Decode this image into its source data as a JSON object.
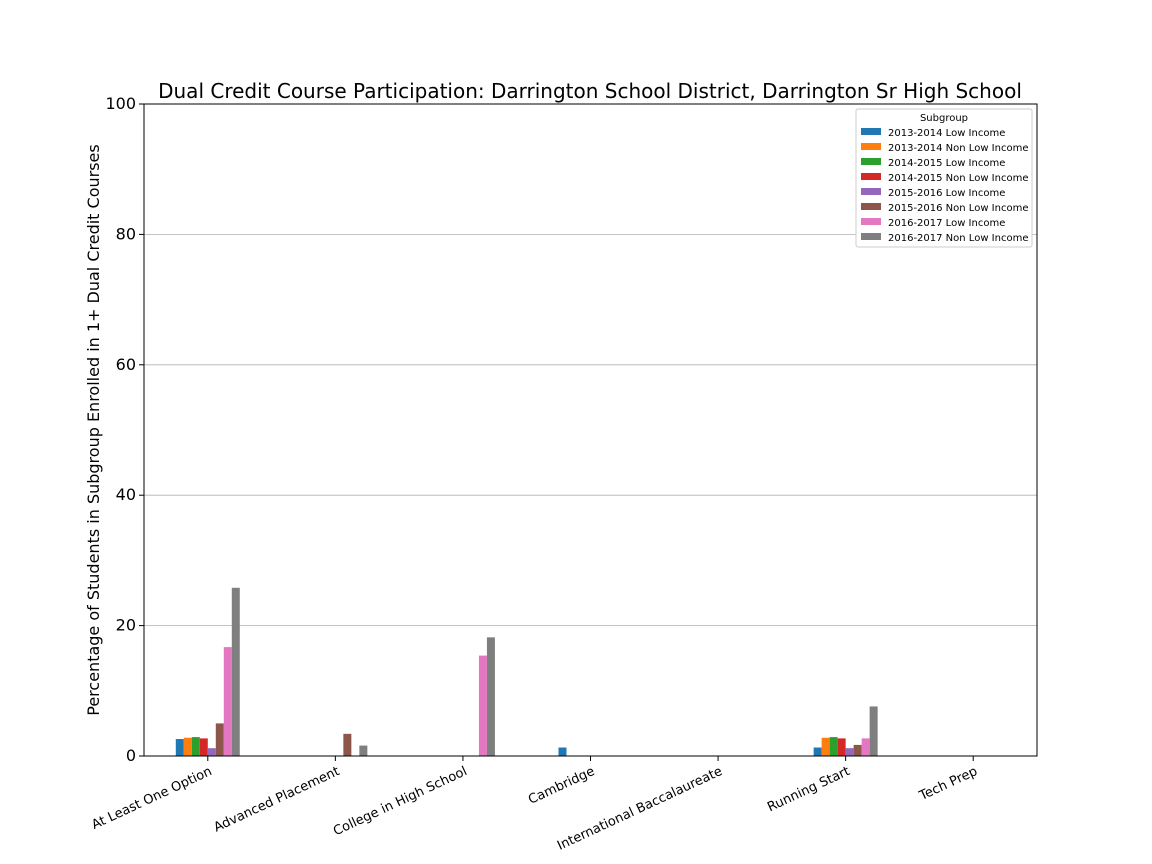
{
  "chart_data": {
    "type": "bar",
    "title": "Dual Credit Course Participation: Darrington School District, Darrington Sr High School",
    "xlabel": "",
    "ylabel": "Percentage of Students in Subgroup Enrolled in 1+ Dual Credit Courses",
    "ylim": [
      0,
      100
    ],
    "yticks": [
      0,
      20,
      40,
      60,
      80,
      100
    ],
    "grid": true,
    "legend": {
      "title": "Subgroup",
      "placement": "top-right"
    },
    "categories": [
      "At Least One Option",
      "Advanced Placement",
      "College in High School",
      "Cambridge",
      "International Baccalaureate",
      "Running Start",
      "Tech Prep"
    ],
    "series": [
      {
        "name": "2013-2014 Low Income",
        "color": "#1f77b4",
        "values": [
          2.6,
          0,
          0,
          1.3,
          0,
          1.3,
          0
        ]
      },
      {
        "name": "2013-2014 Non Low Income",
        "color": "#ff7f0e",
        "values": [
          2.8,
          0,
          0,
          0,
          0,
          2.8,
          0
        ]
      },
      {
        "name": "2014-2015 Low Income",
        "color": "#2ca02c",
        "values": [
          2.9,
          0,
          0,
          0,
          0,
          2.9,
          0
        ]
      },
      {
        "name": "2014-2015 Non Low Income",
        "color": "#d62728",
        "values": [
          2.7,
          0,
          0,
          0,
          0,
          2.7,
          0
        ]
      },
      {
        "name": "2015-2016 Low Income",
        "color": "#9467bd",
        "values": [
          1.2,
          0,
          0,
          0,
          0,
          1.2,
          0
        ]
      },
      {
        "name": "2015-2016 Non Low Income",
        "color": "#8c564b",
        "values": [
          5.0,
          3.4,
          0,
          0,
          0,
          1.7,
          0
        ]
      },
      {
        "name": "2016-2017 Low Income",
        "color": "#e377c2",
        "values": [
          16.7,
          0,
          15.4,
          0,
          0,
          2.7,
          0
        ]
      },
      {
        "name": "2016-2017 Non Low Income",
        "color": "#7f7f7f",
        "values": [
          25.8,
          1.6,
          18.2,
          0,
          0,
          7.6,
          0
        ]
      }
    ]
  }
}
